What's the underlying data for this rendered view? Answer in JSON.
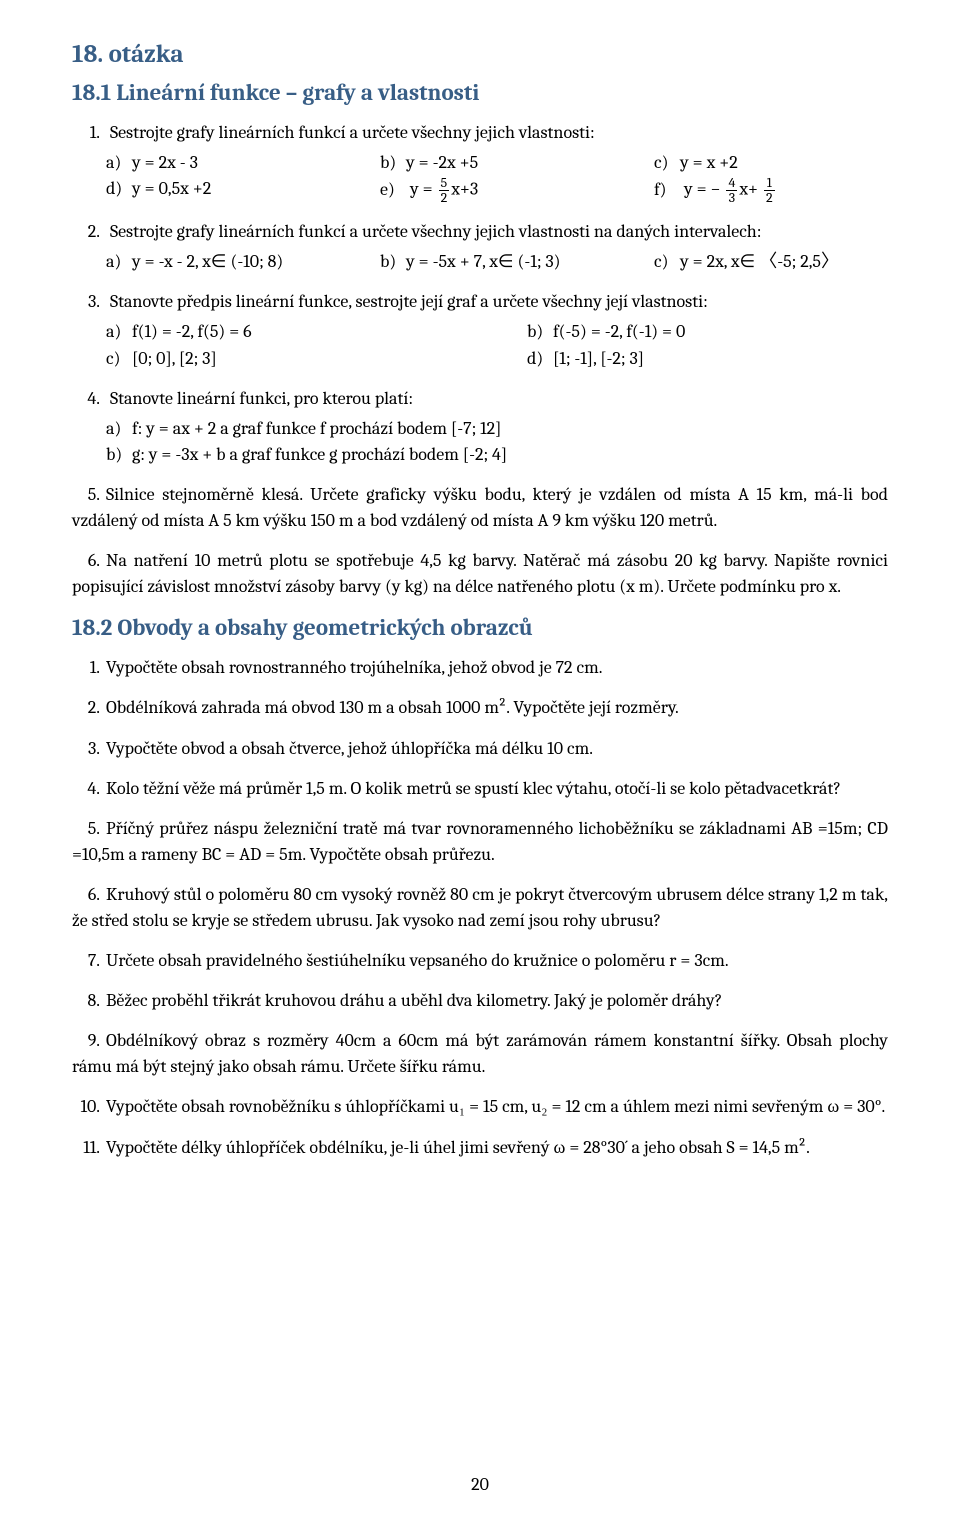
{
  "heading": "18. otázka",
  "section1": {
    "title": "18.1  Lineární funkce – grafy a vlastnosti",
    "q1": {
      "intro": "Sestrojte grafy lineárních funkcí a určete všechny jejich vlastnosti:",
      "a": "y = 2x - 3",
      "b": "y = -2x +5",
      "c": "y = x +2",
      "d": "y = 0,5x +2",
      "e_pre": "y = ",
      "e_num": "5",
      "e_den": "2",
      "e_post": "x+3",
      "f_pre": "y = − ",
      "f_n1": "4",
      "f_d1": "3",
      "f_mid": "x+ ",
      "f_n2": "1",
      "f_d2": "2"
    },
    "q2": {
      "intro": "Sestrojte grafy lineárních funkcí a určete všechny jejich vlastnosti na daných intervalech:",
      "a": "y = -x - 2, x∈ (-10; 8)",
      "b": "y = -5x + 7, x∈ (-1; 3)",
      "c": "y = 2x, x∈ 〈-5; 2,5〉"
    },
    "q3": {
      "intro": "Stanovte předpis lineární funkce, sestrojte její graf a určete všechny její vlastnosti:",
      "a": "f(1) = -2, f(5) = 6",
      "b": "f(-5) = -2, f(-1) = 0",
      "c": "[0; 0], [2; 3]",
      "d": "[1; -1], [-2; 3]"
    },
    "q4": {
      "intro": "Stanovte lineární funkci, pro kterou platí:",
      "a": "f: y = ax + 2 a graf funkce f prochází bodem [-7; 12]",
      "b": "g: y = -3x + b a graf funkce g prochází bodem [-2; 4]"
    },
    "q5": "Silnice stejnoměrně klesá. Určete graficky výšku bodu, který je vzdálen od místa A 15 km, má-li bod vzdálený od místa A 5 km výšku 150 m a bod vzdálený od místa A 9 km výšku 120 metrů.",
    "q6": "Na natření 10 metrů plotu se spotřebuje 4,5 kg barvy. Natěrač má zásobu 20 kg barvy. Napište rovnici popisující závislost množství zásoby barvy (y kg) na délce natřeného plotu (x m). Určete podmínku pro x."
  },
  "section2": {
    "title": "18.2  Obvody a obsahy geometrických obrazců",
    "q1": "Vypočtěte obsah rovnostranného trojúhelníka, jehož obvod je 72 cm.",
    "q2": "Obdélníková zahrada má obvod 130 m a obsah 1000 m². Vypočtěte její rozměry.",
    "q3": "Vypočtěte obvod a obsah čtverce, jehož úhlopříčka má délku 10 cm.",
    "q4": "Kolo těžní věže má průměr 1,5 m. O kolik metrů se spustí klec výtahu, otočí-li se kolo pětadvacetkrát?",
    "q5": "Příčný průřez náspu železniční tratě má tvar rovnoramenného lichoběžníku se základnami AB =15m; CD =10,5m a rameny BC = AD = 5m. Vypočtěte obsah průřezu.",
    "q6": "Kruhový stůl o poloměru 80 cm vysoký rovněž 80 cm je pokryt čtvercovým ubrusem délce strany 1,2 m tak, že střed stolu se kryje se středem ubrusu. Jak vysoko nad zemí jsou rohy ubrusu?",
    "q7": "Určete obsah pravidelného šestiúhelníku vepsaného do kružnice o poloměru r = 3cm.",
    "q8": "Běžec proběhl třikrát kruhovou dráhu a uběhl dva kilometry. Jaký je poloměr dráhy?",
    "q9": "Obdélníkový obraz s rozměry 40cm a 60cm má být zarámován rámem konstantní šířky. Obsah plochy rámu má být stejný jako obsah rámu. Určete šířku rámu.",
    "q10": "Vypočtěte obsah rovnoběžníku s úhlopříčkami u₁ = 15 cm, u₂ = 12 cm a úhlem mezi nimi sevřeným ω = 30°.",
    "q11": "Vypočtěte délky úhlopříček obdélníku, je-li úhel jimi sevřený ω = 28°30´ a jeho obsah S = 14,5 m²."
  },
  "labels": {
    "n1": "1.",
    "n2": "2.",
    "n3": "3.",
    "n4": "4.",
    "n5": "5.",
    "n6": "6.",
    "n7": "7.",
    "n8": "8.",
    "n9": "9.",
    "n10": "10.",
    "n11": "11.",
    "a": "a)",
    "b": "b)",
    "c": "c)",
    "d": "d)",
    "e": "e)",
    "f": "f)"
  },
  "pagenum": "20"
}
